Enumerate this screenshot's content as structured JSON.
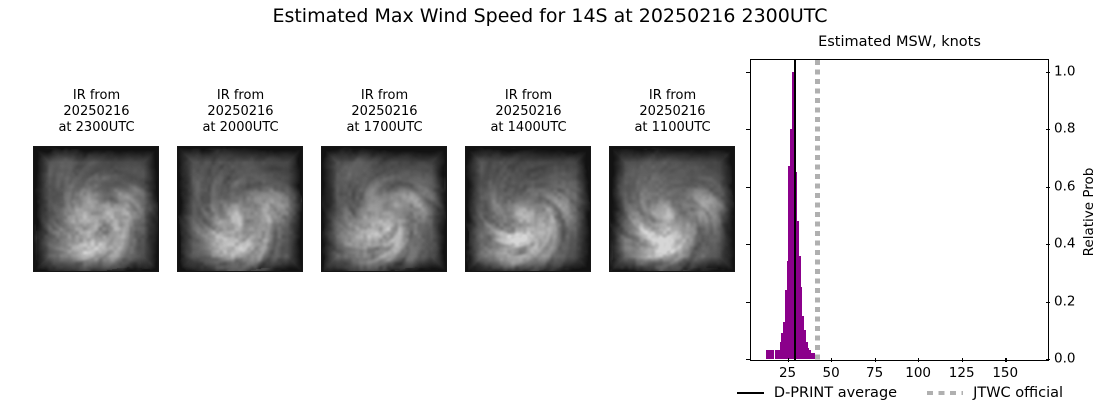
{
  "figure_title": "Estimated Max Wind Speed for 14S at 20250216 2300UTC",
  "ir_panels": [
    {
      "label_lines": [
        "IR from",
        "20250216",
        "at 2300UTC"
      ]
    },
    {
      "label_lines": [
        "IR from",
        "20250216",
        "at 2000UTC"
      ]
    },
    {
      "label_lines": [
        "IR from",
        "20250216",
        "at 1700UTC"
      ]
    },
    {
      "label_lines": [
        "IR from",
        "20250216",
        "at 1400UTC"
      ]
    },
    {
      "label_lines": [
        "IR from",
        "20250216",
        "at 1100UTC"
      ]
    }
  ],
  "histogram": {
    "title": "Estimated MSW, knots",
    "ylabel": "Relative Prob",
    "x_tick_labels": [
      "25",
      "50",
      "75",
      "100",
      "125",
      "150"
    ],
    "y_tick_labels": [
      "0.0",
      "0.2",
      "0.4",
      "0.6",
      "0.8",
      "1.0"
    ]
  },
  "legend": {
    "dprint_label": "D-PRINT average",
    "jtwc_label": "JTWC official"
  },
  "chart_data": {
    "type": "bar",
    "title": "Estimated MSW, knots",
    "xlabel": "",
    "ylabel": "Relative Prob",
    "bin_width": 1,
    "bin_centers": [
      13,
      14,
      15,
      16,
      17,
      18,
      19,
      20,
      21,
      22,
      23,
      24,
      25,
      26,
      27,
      28,
      29,
      30,
      31,
      32,
      33,
      34,
      35,
      36,
      37,
      38,
      39,
      40
    ],
    "values": [
      0.03,
      0.03,
      0.03,
      0.03,
      0.03,
      0.03,
      0.03,
      0.03,
      0.06,
      0.09,
      0.13,
      0.24,
      0.34,
      0.67,
      0.8,
      1.0,
      0.68,
      0.65,
      0.48,
      0.36,
      0.25,
      0.15,
      0.1,
      0.06,
      0.04,
      0.03,
      0.02,
      0.02
    ],
    "x_ticks": [
      25,
      50,
      75,
      100,
      125,
      150
    ],
    "y_ticks": [
      0.0,
      0.2,
      0.4,
      0.6,
      0.8,
      1.0
    ],
    "xlim": [
      4,
      174
    ],
    "ylim": [
      0,
      1.04
    ],
    "dprint_average_knots": 29,
    "jtwc_official_knots": 42,
    "bar_color": "#8b008b",
    "average_line_color": "#000000",
    "jtwc_line_color": "#b0b0b0",
    "grid": false,
    "legend_position": "below"
  }
}
